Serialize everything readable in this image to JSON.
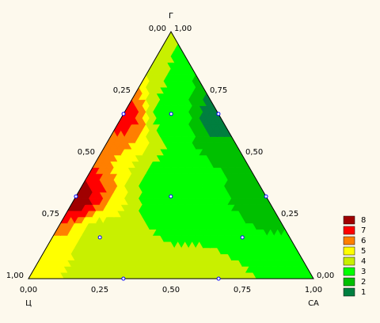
{
  "chart_data": {
    "type": "ternary",
    "axis_labels": {
      "top": "Г",
      "left": "Ц",
      "right": "СА"
    },
    "a": [
      0.333,
      0.167,
      0,
      0.667,
      0.333,
      0,
      0.667,
      0.167,
      0.667,
      0.333
    ],
    "b": [
      0,
      0.167,
      0.333,
      0,
      0.333,
      0.667,
      0.167,
      0.667,
      0.333,
      0.667
    ],
    "c": [
      0.667,
      0.667,
      0.667,
      0.333,
      0.333,
      0.333,
      0.167,
      0.167,
      0,
      0
    ],
    "values": [
      7,
      3,
      1,
      8,
      2.5,
      2,
      4,
      2.5,
      4,
      4.5
    ],
    "a_ticks": [
      {
        "value": 0,
        "label": "0,00"
      },
      {
        "value": 0.25,
        "label": "0,25"
      },
      {
        "value": 0.5,
        "label": "0,50"
      },
      {
        "value": 0.75,
        "label": "0,75"
      },
      {
        "value": 1,
        "label": "1,00"
      }
    ],
    "b_ticks": [
      {
        "value": 0,
        "label": "0,00"
      },
      {
        "value": 0.25,
        "label": "0,25"
      },
      {
        "value": 0.5,
        "label": "0,50"
      },
      {
        "value": 0.75,
        "label": "0,75"
      },
      {
        "value": 1,
        "label": "1,00"
      }
    ],
    "c_ticks": [
      {
        "value": 0,
        "label": "0,00"
      },
      {
        "value": 0.25,
        "label": "0,25"
      },
      {
        "value": 0.5,
        "label": "0,50"
      },
      {
        "value": 0.75,
        "label": "0,75"
      },
      {
        "value": 1,
        "label": "1,00"
      }
    ],
    "point_color": "#0000ff",
    "legend": {
      "levels": [
        8,
        7,
        6,
        5,
        4,
        3,
        2,
        1
      ],
      "colors": [
        "#a00000",
        "#ff0000",
        "#ff7f00",
        "#ffff00",
        "#c8f000",
        "#00ff00",
        "#00c000",
        "#007f3f"
      ]
    }
  }
}
